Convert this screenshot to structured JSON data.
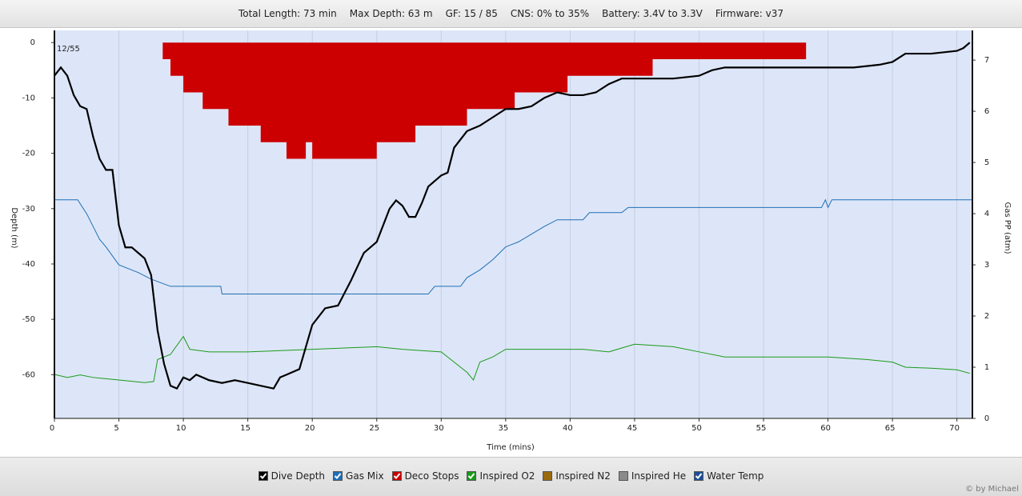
{
  "header": [
    "Total Length: 73 min",
    "Max Depth: 63 m",
    "GF: 15 / 85",
    "CNS: 0% to 35%",
    "Battery: 3.4V to 3.3V",
    "Firmware: v37"
  ],
  "credit": "© by Michael",
  "chart_data": {
    "type": "line",
    "annotation": "12/55",
    "xlabel": "Time (mins)",
    "ylabel": "Depth (m)",
    "y2label": "Gas PP (atm)",
    "xlim": [
      0,
      71.2
    ],
    "ylim": [
      -67.9,
      2.2
    ],
    "y2lim": [
      0,
      7.58
    ],
    "xticks": [
      0,
      5,
      10,
      15,
      20,
      25,
      30,
      35,
      40,
      45,
      50,
      55,
      60,
      65,
      70
    ],
    "yticks": [
      0,
      -10,
      -20,
      -30,
      -40,
      -50,
      -60
    ],
    "y2ticks": [
      0,
      1,
      2,
      3,
      4,
      5,
      6,
      7
    ],
    "grid": true,
    "series": [
      {
        "name": "Dive Depth",
        "color": "#000000",
        "checked": true,
        "type": "line",
        "x": [
          0,
          0.5,
          1,
          1.5,
          2,
          2.5,
          3,
          3.5,
          4,
          4.5,
          5,
          5.5,
          6,
          6.5,
          7,
          7.5,
          8,
          8.5,
          9,
          9.5,
          10,
          10.5,
          11,
          12,
          13,
          14,
          15,
          16,
          17,
          17.5,
          18,
          19,
          19.5,
          20,
          21,
          22,
          23,
          24,
          25,
          26,
          26.5,
          27,
          27.5,
          28,
          28.5,
          29,
          30,
          30.5,
          31,
          32,
          33,
          34,
          35,
          36,
          37,
          38,
          39,
          40,
          41,
          42,
          43,
          44,
          45,
          46,
          48,
          50,
          51,
          52,
          55,
          57,
          60,
          62,
          64,
          65,
          66,
          68,
          70,
          70.5,
          71
        ],
        "values": [
          -6,
          -4.5,
          -6,
          -9.5,
          -11.5,
          -12,
          -17,
          -21,
          -23,
          -23,
          -33,
          -37,
          -37,
          -38,
          -39,
          -42,
          -52,
          -58,
          -62,
          -62.5,
          -60.5,
          -61,
          -60,
          -61,
          -61.5,
          -61,
          -61.5,
          -62,
          -62.5,
          -60.5,
          -60,
          -59,
          -55,
          -51,
          -48,
          -47.5,
          -43,
          -38,
          -36,
          -30,
          -28.5,
          -29.5,
          -31.5,
          -31.5,
          -29,
          -26,
          -24,
          -23.5,
          -19,
          -16,
          -15,
          -13.5,
          -12,
          -12,
          -11.5,
          -10,
          -9,
          -9.5,
          -9.5,
          -9,
          -7.5,
          -6.5,
          -6.5,
          -6.5,
          -6.5,
          -6,
          -5,
          -4.5,
          -4.5,
          -4.5,
          -4.5,
          -4.5,
          -4,
          -3.5,
          -2,
          -2,
          -1.5,
          -1,
          0
        ]
      },
      {
        "name": "Gas Mix",
        "color": "#1f6fb5",
        "checked": true,
        "type": "line",
        "axis": "y2",
        "x": [
          0,
          1.8,
          2.5,
          3,
          3.5,
          4,
          5,
          6.5,
          7.5,
          9,
          12.9,
          13,
          29,
          29.5,
          31.5,
          32,
          33,
          34,
          35,
          36,
          37,
          38,
          39,
          41,
          41.5,
          44,
          44.5,
          59.5,
          59.8,
          60,
          60.3,
          71.2
        ],
        "values": [
          4.27,
          4.27,
          4.0,
          3.75,
          3.5,
          3.35,
          3.0,
          2.85,
          2.72,
          2.58,
          2.58,
          2.43,
          2.43,
          2.58,
          2.58,
          2.75,
          2.9,
          3.1,
          3.35,
          3.45,
          3.6,
          3.75,
          3.88,
          3.88,
          4.02,
          4.02,
          4.12,
          4.12,
          4.27,
          4.12,
          4.27,
          4.27
        ]
      },
      {
        "name": "Deco Stops",
        "color": "#cc0000",
        "checked": true,
        "type": "area",
        "x": [
          8.4,
          9,
          10,
          11.5,
          13.5,
          16,
          18,
          19.5,
          20,
          25,
          28,
          32,
          35.7,
          39.8,
          46.4,
          58.3
        ],
        "values": [
          -3,
          -6,
          -9,
          -12,
          -15,
          -18,
          -21,
          -18,
          -21,
          -18,
          -15,
          -12,
          -9,
          -6,
          -3,
          0
        ]
      },
      {
        "name": "Inspired O2",
        "color": "#1a9a1a",
        "checked": true,
        "type": "line",
        "axis": "y2",
        "x": [
          0,
          1,
          2,
          3,
          5,
          7,
          7.7,
          8,
          9,
          10,
          10.5,
          12,
          15,
          20,
          25,
          27,
          30,
          31,
          32,
          32.5,
          33,
          34,
          35,
          38,
          41,
          43,
          45,
          48,
          50,
          52,
          55,
          60,
          63,
          65,
          66,
          68,
          70,
          71
        ],
        "values": [
          0.86,
          0.8,
          0.85,
          0.8,
          0.75,
          0.7,
          0.72,
          1.15,
          1.25,
          1.6,
          1.35,
          1.3,
          1.3,
          1.35,
          1.4,
          1.35,
          1.3,
          1.1,
          0.9,
          0.75,
          1.1,
          1.2,
          1.35,
          1.35,
          1.35,
          1.3,
          1.45,
          1.4,
          1.3,
          1.2,
          1.2,
          1.2,
          1.15,
          1.1,
          1.0,
          0.98,
          0.95,
          0.88
        ]
      },
      {
        "name": "Inspired N2",
        "color": "#9a6a10",
        "checked": false
      },
      {
        "name": "Inspired He",
        "color": "#8a8a8a",
        "checked": false
      },
      {
        "name": "Water Temp",
        "color": "#1a4f9a",
        "checked": true
      }
    ]
  }
}
